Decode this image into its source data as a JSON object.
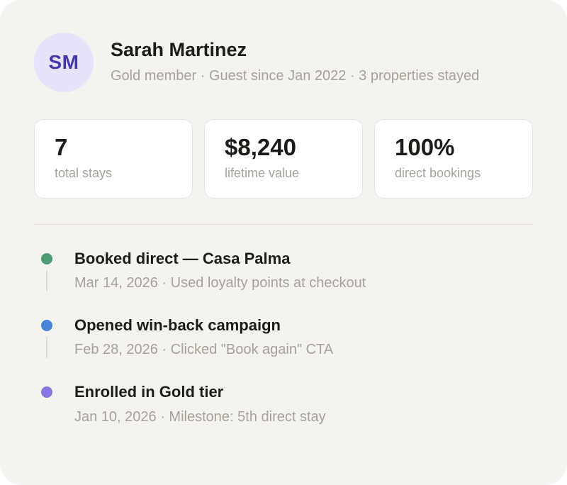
{
  "profile": {
    "avatar_initials": "SM",
    "name": "Sarah Martinez",
    "meta": "Gold member · Guest since Jan 2022 · 3 properties stayed"
  },
  "stats": [
    {
      "value": "7",
      "label": "total stays"
    },
    {
      "value": "$8,240",
      "label": "lifetime value"
    },
    {
      "value": "100%",
      "label": "direct bookings"
    }
  ],
  "timeline": [
    {
      "title": "Booked direct — Casa Palma",
      "detail": "Mar 14, 2026 · Used loyalty points at checkout",
      "dot_color": "#4e9b73"
    },
    {
      "title": "Opened win-back campaign",
      "detail": "Feb 28, 2026 · Clicked \"Book again\" CTA",
      "dot_color": "#4584d7"
    },
    {
      "title": "Enrolled in Gold tier",
      "detail": "Jan 10, 2026 · Milestone: 5th direct stay",
      "dot_color": "#8a77de"
    }
  ],
  "colors": {
    "page_background": "#ffffff",
    "card_background": "#f5f3ee",
    "stat_card_background": "#ffffff",
    "stat_card_border": "#e6e3dc",
    "divider": "#e0ddd6",
    "heading_text": "#1e1c18",
    "muted_text": "#a5a29b",
    "avatar_background": "#e7e3fa",
    "avatar_text": "#4338a8"
  }
}
